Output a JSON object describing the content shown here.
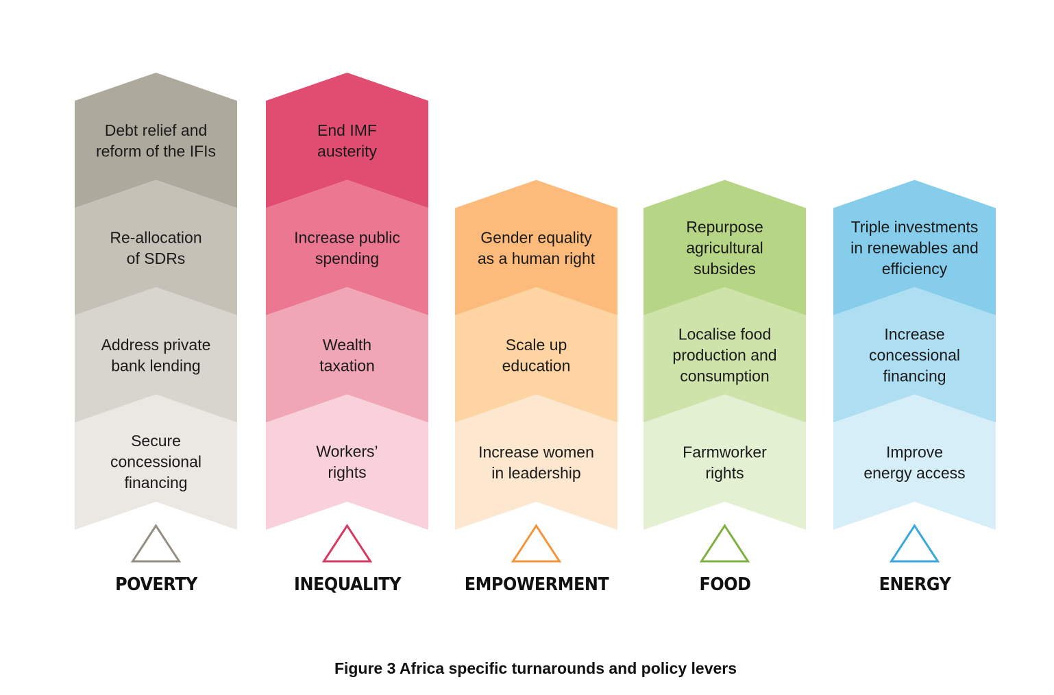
{
  "figure": {
    "caption": "Figure 3 Africa specific turnarounds and policy levers"
  },
  "columns": [
    {
      "label": "POVERTY",
      "accent": "#958E82",
      "segments": [
        {
          "lines": [
            "Debt relief and",
            "reform of the IFIs"
          ],
          "color": "#ADAA9D"
        },
        {
          "lines": [
            "Re-allocation",
            "of SDRs"
          ],
          "color": "#C5C1B7"
        },
        {
          "lines": [
            "Address private",
            "bank lending"
          ],
          "color": "#D8D5CE"
        },
        {
          "lines": [
            "Secure",
            "concessional",
            "financing"
          ],
          "color": "#EBE8E3"
        }
      ]
    },
    {
      "label": "INEQUALITY",
      "accent": "#D63A64",
      "segments": [
        {
          "lines": [
            "End IMF",
            "austerity"
          ],
          "color": "#E04D70"
        },
        {
          "lines": [
            "Increase public",
            "spending"
          ],
          "color": "#EB7790"
        },
        {
          "lines": [
            "Wealth",
            "taxation"
          ],
          "color": "#F1A6B5"
        },
        {
          "lines": [
            "Workers’",
            "rights"
          ],
          "color": "#F8D1DA"
        }
      ]
    },
    {
      "label": "EMPOWERMENT",
      "accent": "#F4953A",
      "segments": [
        {
          "lines": [
            "Gender equality",
            "as a human right"
          ],
          "color": "#FDBB7B"
        },
        {
          "lines": [
            "Scale up",
            "education"
          ],
          "color": "#FDD4A2"
        },
        {
          "lines": [
            "Increase women",
            "in leadership"
          ],
          "color": "#FDE7CE"
        }
      ]
    },
    {
      "label": "FOOD",
      "accent": "#7FB13F",
      "segments": [
        {
          "lines": [
            "Repurpose",
            "agricultural",
            "subsides"
          ],
          "color": "#B6D585"
        },
        {
          "lines": [
            "Localise food",
            "production and",
            "consumption"
          ],
          "color": "#CEE3AA"
        },
        {
          "lines": [
            "Farmworker",
            "rights"
          ],
          "color": "#E4F0D2"
        }
      ]
    },
    {
      "label": "ENERGY",
      "accent": "#3AA8DC",
      "segments": [
        {
          "lines": [
            "Triple investments",
            "in renewables and",
            "efficiency"
          ],
          "color": "#86CDEB"
        },
        {
          "lines": [
            "Increase",
            "concessional",
            "financing"
          ],
          "color": "#AEDEF2"
        },
        {
          "lines": [
            "Improve",
            "energy access"
          ],
          "color": "#D6EEF8"
        }
      ]
    }
  ]
}
